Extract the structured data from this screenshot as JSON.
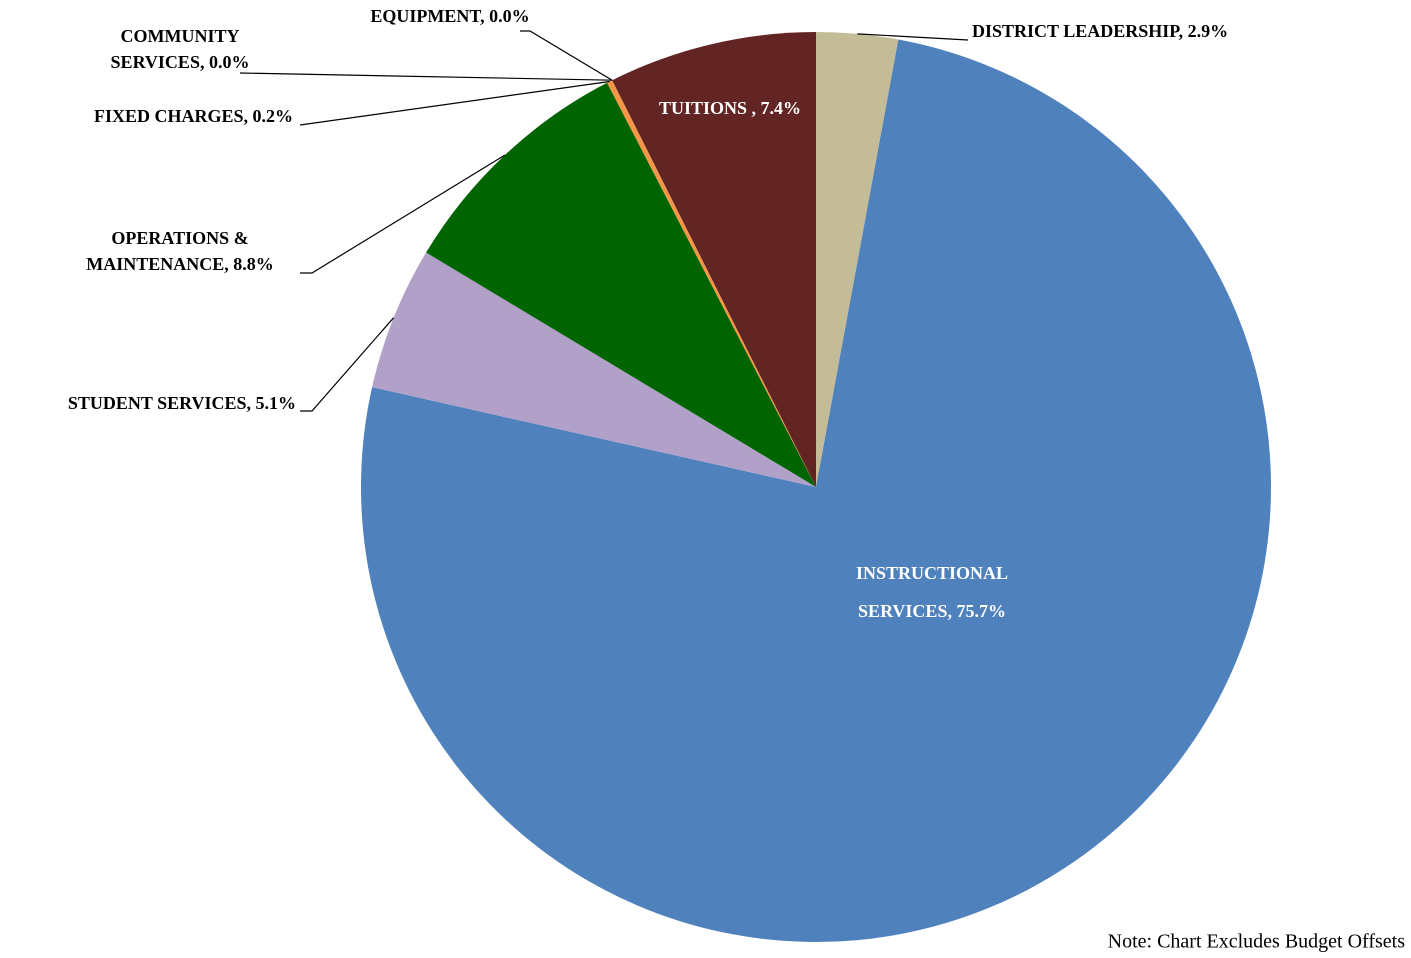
{
  "chart_data": {
    "type": "pie",
    "value_labels": [
      [
        "DISTRICT LEADERSHIP, 2.9%"
      ],
      [
        "INSTRUCTIONAL",
        "SERVICES, 75.7%"
      ],
      [
        "STUDENT SERVICES, 5.1%"
      ],
      [
        "OPERATIONS &",
        "MAINTENANCE, 8.8%"
      ],
      [
        "FIXED CHARGES, 0.2%"
      ],
      [
        "COMMUNITY",
        "SERVICES, 0.0%"
      ],
      [
        "EQUIPMENT, 0.0%"
      ],
      [
        "TUITIONS , 7.4%"
      ]
    ],
    "values": [
      2.9,
      75.7,
      5.1,
      8.8,
      0.2,
      0.0,
      0.0,
      7.4
    ],
    "colors": [
      "#c4bc96",
      "#4f81bd",
      "#b1a0c7",
      "#006400",
      "#f79646",
      "#9bbb59",
      "#8064a2",
      "#632523"
    ],
    "note": "Note: Chart  Excludes Budget Offsets"
  }
}
